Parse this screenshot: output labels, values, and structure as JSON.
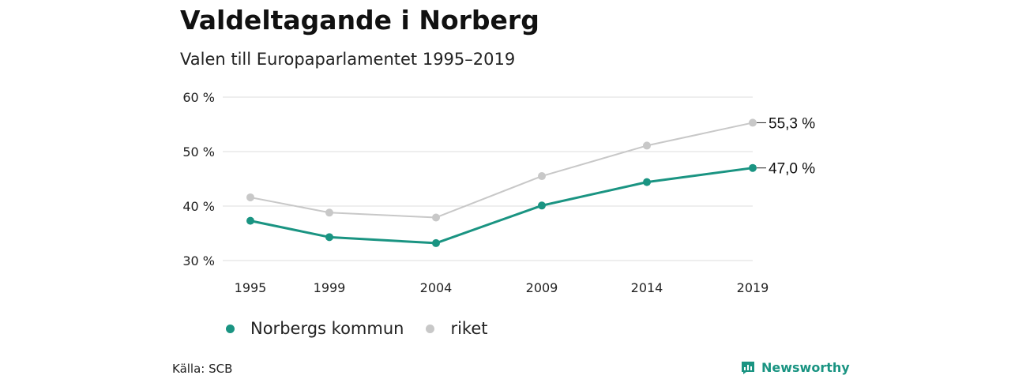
{
  "title": "Valdeltagande i Norberg",
  "subtitle": "Valen till Europaparlamentet 1995–2019",
  "source": "Källa: SCB",
  "brand": "Newsworthy",
  "colors": {
    "norberg": "#1a9482",
    "riket": "#c8c8c8",
    "grid": "#dddddd",
    "brand": "#1a9482"
  },
  "chart_data": {
    "type": "line",
    "x": [
      "1995",
      "1999",
      "2004",
      "2009",
      "2014",
      "2019"
    ],
    "ylim": [
      30,
      60
    ],
    "yticks": [
      "30 %",
      "40 %",
      "50 %",
      "60 %"
    ],
    "ytick_values": [
      30,
      40,
      50,
      60
    ],
    "grid": true,
    "legend_position": "bottom-left",
    "series": [
      {
        "name": "Norbergs kommun",
        "color": "#1a9482",
        "values": [
          37.3,
          34.3,
          33.2,
          40.1,
          44.4,
          47.0
        ],
        "end_label": "47,0 %"
      },
      {
        "name": "riket",
        "color": "#c8c8c8",
        "values": [
          41.6,
          38.8,
          37.9,
          45.5,
          51.1,
          55.3
        ],
        "end_label": "55,3 %"
      }
    ]
  }
}
